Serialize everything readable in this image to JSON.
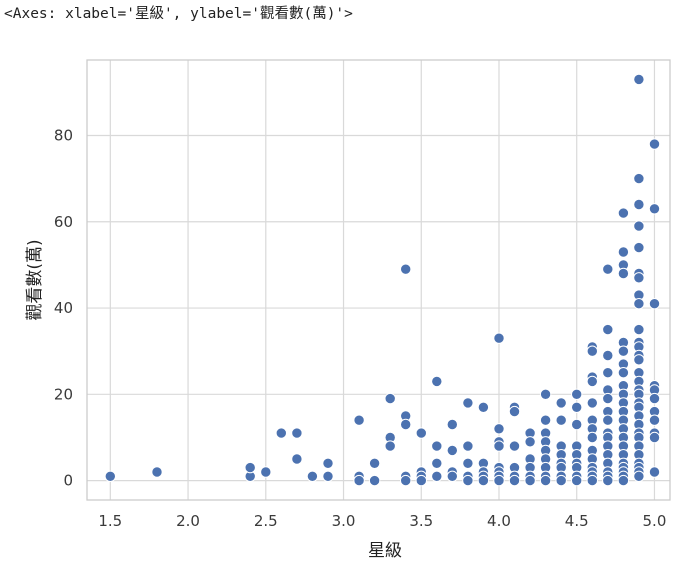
{
  "output_repr": "<Axes: xlabel='星級', ylabel='觀看數(萬)'>",
  "colors": {
    "point": "#4c72b0",
    "point_edge": "#ffffff",
    "grid": "#d9d9d9",
    "frame": "#cccccc"
  },
  "chart_data": {
    "type": "scatter",
    "title": "",
    "xlabel": "星級",
    "ylabel": "觀看數(萬)",
    "xlim": [
      1.35,
      5.1
    ],
    "ylim": [
      -4.5,
      97.5
    ],
    "xticks": [
      1.5,
      2.0,
      2.5,
      3.0,
      3.5,
      4.0,
      4.5,
      5.0
    ],
    "xtick_labels": [
      "1.5",
      "2.0",
      "2.5",
      "3.0",
      "3.5",
      "4.0",
      "4.5",
      "5.0"
    ],
    "yticks": [
      0,
      20,
      40,
      60,
      80
    ],
    "ytick_labels": [
      "0",
      "20",
      "40",
      "60",
      "80"
    ],
    "grid": true,
    "legend": "none",
    "points": [
      [
        1.5,
        1
      ],
      [
        1.8,
        2
      ],
      [
        2.4,
        1
      ],
      [
        2.4,
        3
      ],
      [
        2.5,
        2
      ],
      [
        2.6,
        11
      ],
      [
        2.7,
        11
      ],
      [
        2.7,
        5
      ],
      [
        2.8,
        1
      ],
      [
        2.9,
        1
      ],
      [
        2.9,
        4
      ],
      [
        3.1,
        14
      ],
      [
        3.1,
        1
      ],
      [
        3.1,
        0
      ],
      [
        3.2,
        4
      ],
      [
        3.2,
        0
      ],
      [
        3.3,
        19
      ],
      [
        3.3,
        10
      ],
      [
        3.3,
        8
      ],
      [
        3.4,
        49
      ],
      [
        3.4,
        15
      ],
      [
        3.4,
        13
      ],
      [
        3.4,
        1
      ],
      [
        3.4,
        0
      ],
      [
        3.5,
        11
      ],
      [
        3.5,
        2
      ],
      [
        3.5,
        1
      ],
      [
        3.5,
        0
      ],
      [
        3.6,
        23
      ],
      [
        3.6,
        8
      ],
      [
        3.6,
        4
      ],
      [
        3.6,
        1
      ],
      [
        3.7,
        13
      ],
      [
        3.7,
        7
      ],
      [
        3.7,
        2
      ],
      [
        3.7,
        1
      ],
      [
        3.8,
        18
      ],
      [
        3.8,
        8
      ],
      [
        3.8,
        4
      ],
      [
        3.8,
        1
      ],
      [
        3.8,
        0
      ],
      [
        3.9,
        17
      ],
      [
        3.9,
        4
      ],
      [
        3.9,
        2
      ],
      [
        3.9,
        1
      ],
      [
        3.9,
        0
      ],
      [
        4.0,
        33
      ],
      [
        4.0,
        12
      ],
      [
        4.0,
        9
      ],
      [
        4.0,
        8
      ],
      [
        4.0,
        3
      ],
      [
        4.0,
        2
      ],
      [
        4.0,
        1
      ],
      [
        4.0,
        0
      ],
      [
        4.1,
        17
      ],
      [
        4.1,
        16
      ],
      [
        4.1,
        8
      ],
      [
        4.1,
        3
      ],
      [
        4.1,
        1
      ],
      [
        4.1,
        0
      ],
      [
        4.2,
        11
      ],
      [
        4.2,
        9
      ],
      [
        4.2,
        5
      ],
      [
        4.2,
        3
      ],
      [
        4.2,
        1
      ],
      [
        4.2,
        0
      ],
      [
        4.3,
        20
      ],
      [
        4.3,
        14
      ],
      [
        4.3,
        11
      ],
      [
        4.3,
        9
      ],
      [
        4.3,
        7
      ],
      [
        4.3,
        5
      ],
      [
        4.3,
        3
      ],
      [
        4.3,
        1
      ],
      [
        4.3,
        0
      ],
      [
        4.4,
        18
      ],
      [
        4.4,
        14
      ],
      [
        4.4,
        8
      ],
      [
        4.4,
        6
      ],
      [
        4.4,
        4
      ],
      [
        4.4,
        3
      ],
      [
        4.4,
        1
      ],
      [
        4.4,
        0
      ],
      [
        4.5,
        20
      ],
      [
        4.5,
        17
      ],
      [
        4.5,
        13
      ],
      [
        4.5,
        8
      ],
      [
        4.5,
        6
      ],
      [
        4.5,
        4
      ],
      [
        4.5,
        3
      ],
      [
        4.5,
        1
      ],
      [
        4.5,
        0
      ],
      [
        4.6,
        31
      ],
      [
        4.6,
        30
      ],
      [
        4.6,
        24
      ],
      [
        4.6,
        23
      ],
      [
        4.6,
        18
      ],
      [
        4.6,
        14
      ],
      [
        4.6,
        12
      ],
      [
        4.6,
        10
      ],
      [
        4.6,
        7
      ],
      [
        4.6,
        5
      ],
      [
        4.6,
        3
      ],
      [
        4.6,
        2
      ],
      [
        4.6,
        1
      ],
      [
        4.6,
        0
      ],
      [
        4.7,
        49
      ],
      [
        4.7,
        35
      ],
      [
        4.7,
        29
      ],
      [
        4.7,
        25
      ],
      [
        4.7,
        21
      ],
      [
        4.7,
        19
      ],
      [
        4.7,
        16
      ],
      [
        4.7,
        14
      ],
      [
        4.7,
        11
      ],
      [
        4.7,
        10
      ],
      [
        4.7,
        8
      ],
      [
        4.7,
        6
      ],
      [
        4.7,
        4
      ],
      [
        4.7,
        2
      ],
      [
        4.7,
        1
      ],
      [
        4.7,
        0
      ],
      [
        4.8,
        62
      ],
      [
        4.8,
        53
      ],
      [
        4.8,
        50
      ],
      [
        4.8,
        48
      ],
      [
        4.8,
        32
      ],
      [
        4.8,
        30
      ],
      [
        4.8,
        27
      ],
      [
        4.8,
        25
      ],
      [
        4.8,
        22
      ],
      [
        4.8,
        20
      ],
      [
        4.8,
        18
      ],
      [
        4.8,
        16
      ],
      [
        4.8,
        14
      ],
      [
        4.8,
        12
      ],
      [
        4.8,
        10
      ],
      [
        4.8,
        8
      ],
      [
        4.8,
        6
      ],
      [
        4.8,
        4
      ],
      [
        4.8,
        3
      ],
      [
        4.8,
        2
      ],
      [
        4.8,
        1
      ],
      [
        4.8,
        0
      ],
      [
        4.9,
        93
      ],
      [
        4.9,
        70
      ],
      [
        4.9,
        64
      ],
      [
        4.9,
        59
      ],
      [
        4.9,
        54
      ],
      [
        4.9,
        48
      ],
      [
        4.9,
        47
      ],
      [
        4.9,
        43
      ],
      [
        4.9,
        41
      ],
      [
        4.9,
        35
      ],
      [
        4.9,
        32
      ],
      [
        4.9,
        31
      ],
      [
        4.9,
        29
      ],
      [
        4.9,
        28
      ],
      [
        4.9,
        25
      ],
      [
        4.9,
        23
      ],
      [
        4.9,
        21
      ],
      [
        4.9,
        20
      ],
      [
        4.9,
        18
      ],
      [
        4.9,
        17
      ],
      [
        4.9,
        15
      ],
      [
        4.9,
        13
      ],
      [
        4.9,
        11
      ],
      [
        4.9,
        10
      ],
      [
        4.9,
        8
      ],
      [
        4.9,
        6
      ],
      [
        4.9,
        4
      ],
      [
        4.9,
        3
      ],
      [
        4.9,
        2
      ],
      [
        4.9,
        1
      ],
      [
        5.0,
        78
      ],
      [
        5.0,
        63
      ],
      [
        5.0,
        41
      ],
      [
        5.0,
        22
      ],
      [
        5.0,
        21
      ],
      [
        5.0,
        19
      ],
      [
        5.0,
        16
      ],
      [
        5.0,
        14
      ],
      [
        5.0,
        11
      ],
      [
        5.0,
        10
      ],
      [
        5.0,
        2
      ]
    ]
  }
}
